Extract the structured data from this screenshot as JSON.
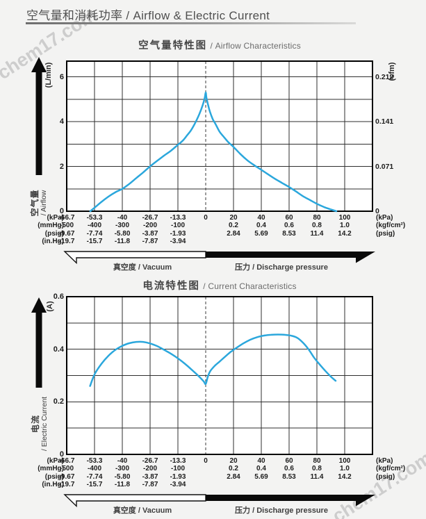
{
  "page": {
    "title": "空气量和消耗功率 / Airflow & Electric Current",
    "watermark": "chem17.com"
  },
  "x_axis": {
    "columns_kpa": [
      -66.7,
      -53.3,
      -40,
      -26.7,
      -13.3,
      0,
      20,
      40,
      60,
      80,
      100
    ],
    "rows": [
      {
        "left_unit": "(kPa)",
        "right_unit": "(kPa)",
        "values": [
          "-66.7",
          "-53.3",
          "-40",
          "-26.7",
          "-13.3",
          "0",
          "20",
          "40",
          "60",
          "80",
          "100"
        ]
      },
      {
        "left_unit": "(mmHg)",
        "right_unit": "(kgf/cm²)",
        "values": [
          "-500",
          "-400",
          "-300",
          "-200",
          "-100",
          "",
          "0.2",
          "0.4",
          "0.6",
          "0.8",
          "1.0"
        ]
      },
      {
        "left_unit": "(psig)",
        "right_unit": "(psig)",
        "values": [
          "-9.67",
          "-7.74",
          "-5.80",
          "-3.87",
          "-1.93",
          "",
          "2.84",
          "5.69",
          "8.53",
          "11.4",
          "14.2"
        ]
      },
      {
        "left_unit": "(in.Hg)",
        "right_unit": "",
        "values": [
          "-19.7",
          "-15.7",
          "-11.8",
          "-7.87",
          "-3.94",
          "",
          "",
          "",
          "",
          "",
          ""
        ]
      }
    ],
    "vacuum_label": "真空度 / Vacuum",
    "pressure_label": "压力 / Discharge pressure"
  },
  "chart_data": [
    {
      "type": "line",
      "title_zh": "空气量特性图",
      "title_en": "/ Airflow Characteristics",
      "y_axis_unit": "(L/min)",
      "y_axis_label_lines": [
        "空气量",
        "/ Airflow"
      ],
      "right_axis_unit": "(cfm)",
      "xlabel": "kPa",
      "ylabel": "Airflow (L/min)",
      "ylim": [
        0,
        6.7
      ],
      "grid_step": 1,
      "grid": true,
      "y_ticks": [
        {
          "value": 6,
          "left": "6",
          "right": "0.212"
        },
        {
          "value": 4,
          "left": "4",
          "right": "0.141"
        },
        {
          "value": 2,
          "left": "2",
          "right": "0.071"
        },
        {
          "value": 0,
          "left": "0",
          "right": "0"
        }
      ],
      "series": [
        {
          "name": "airflow",
          "color": "#2BA7DC",
          "points": [
            [
              -55.4,
              0
            ],
            [
              -53.3,
              0.16
            ],
            [
              -50,
              0.42
            ],
            [
              -46.7,
              0.65
            ],
            [
              -43.3,
              0.85
            ],
            [
              -40,
              1.0
            ],
            [
              -36.7,
              1.22
            ],
            [
              -33.3,
              1.48
            ],
            [
              -30,
              1.73
            ],
            [
              -26.7,
              2.0
            ],
            [
              -23.3,
              2.25
            ],
            [
              -20,
              2.48
            ],
            [
              -16.7,
              2.7
            ],
            [
              -13.3,
              2.97
            ],
            [
              -11,
              3.15
            ],
            [
              -9,
              3.38
            ],
            [
              -7,
              3.62
            ],
            [
              -5,
              3.95
            ],
            [
              -3,
              4.35
            ],
            [
              -1.5,
              4.72
            ],
            [
              -0.5,
              5.05
            ],
            [
              0,
              5.3
            ],
            [
              0.5,
              5.08
            ],
            [
              1.5,
              4.8
            ],
            [
              3,
              4.45
            ],
            [
              5,
              4.12
            ],
            [
              7,
              3.9
            ],
            [
              10,
              3.55
            ],
            [
              13,
              3.32
            ],
            [
              16,
              3.1
            ],
            [
              20,
              2.87
            ],
            [
              25,
              2.55
            ],
            [
              30,
              2.27
            ],
            [
              35,
              2.05
            ],
            [
              40,
              1.85
            ],
            [
              45,
              1.64
            ],
            [
              50,
              1.44
            ],
            [
              55,
              1.26
            ],
            [
              60,
              1.08
            ],
            [
              65,
              0.88
            ],
            [
              70,
              0.67
            ],
            [
              75,
              0.5
            ],
            [
              80,
              0.33
            ],
            [
              85,
              0.19
            ],
            [
              90,
              0.08
            ],
            [
              94,
              0
            ]
          ]
        }
      ]
    },
    {
      "type": "line",
      "title_zh": "电流特性图",
      "title_en": "/ Current Characteristics",
      "y_axis_unit": "(A)",
      "y_axis_label_lines": [
        "电流",
        "/ Electric Current"
      ],
      "right_axis_unit": "",
      "xlabel": "kPa",
      "ylabel": "Electric Current (A)",
      "ylim": [
        0,
        0.6
      ],
      "grid_step": 0.1,
      "grid": true,
      "y_ticks": [
        {
          "value": 0.6,
          "left": "0.6",
          "right": ""
        },
        {
          "value": 0.4,
          "left": "0.4",
          "right": ""
        },
        {
          "value": 0.2,
          "left": "0.2",
          "right": ""
        },
        {
          "value": 0,
          "left": "0",
          "right": ""
        }
      ],
      "series": [
        {
          "name": "current",
          "color": "#2BA7DC",
          "points": [
            [
              -55.5,
              0.26
            ],
            [
              -53.3,
              0.305
            ],
            [
              -50,
              0.345
            ],
            [
              -46.7,
              0.375
            ],
            [
              -43.3,
              0.398
            ],
            [
              -40,
              0.413
            ],
            [
              -36.7,
              0.423
            ],
            [
              -33.3,
              0.428
            ],
            [
              -30,
              0.428
            ],
            [
              -26.7,
              0.422
            ],
            [
              -23.3,
              0.412
            ],
            [
              -20,
              0.398
            ],
            [
              -16.7,
              0.383
            ],
            [
              -13.3,
              0.365
            ],
            [
              -10,
              0.345
            ],
            [
              -6.7,
              0.322
            ],
            [
              -3.3,
              0.297
            ],
            [
              -1,
              0.278
            ],
            [
              0,
              0.268
            ],
            [
              1.5,
              0.295
            ],
            [
              3.3,
              0.317
            ],
            [
              6.7,
              0.338
            ],
            [
              10,
              0.353
            ],
            [
              14,
              0.372
            ],
            [
              18,
              0.39
            ],
            [
              22,
              0.405
            ],
            [
              27,
              0.422
            ],
            [
              32,
              0.436
            ],
            [
              37,
              0.446
            ],
            [
              42,
              0.452
            ],
            [
              47,
              0.455
            ],
            [
              52,
              0.456
            ],
            [
              57,
              0.455
            ],
            [
              62,
              0.451
            ],
            [
              66,
              0.443
            ],
            [
              70,
              0.425
            ],
            [
              74,
              0.4
            ],
            [
              78,
              0.368
            ],
            [
              82,
              0.342
            ],
            [
              86,
              0.318
            ],
            [
              90,
              0.296
            ],
            [
              93.5,
              0.28
            ]
          ]
        }
      ]
    }
  ]
}
